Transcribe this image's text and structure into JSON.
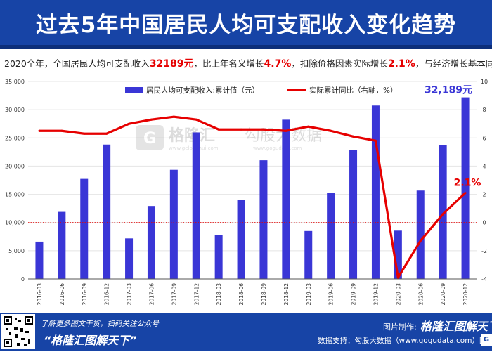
{
  "header": {
    "title": "过去5年中国居民人均可支配收入变化趋势"
  },
  "subtitle": {
    "p1": "2020全年，全国居民人均可支配收入",
    "v1": "32189元",
    "p2": "，比上年名义增长",
    "v2": "4.7%",
    "p3": "，扣除价格因素实际增长",
    "v3": "2.1%",
    "p4": "，与经济增长基本同步。"
  },
  "chart_data": {
    "type": "bar",
    "categories": [
      "2016-03",
      "2016-06",
      "2016-09",
      "2016-12",
      "2017-03",
      "2017-06",
      "2017-09",
      "2017-12",
      "2018-03",
      "2018-06",
      "2018-09",
      "2018-12",
      "2019-03",
      "2019-06",
      "2019-09",
      "2019-12",
      "2020-03",
      "2020-06",
      "2020-09",
      "2020-12"
    ],
    "series": [
      {
        "name": "居民人均可支配收入:累计值（元）",
        "type": "bar",
        "axis": "left",
        "color": "#3a36d6",
        "values": [
          6609,
          11886,
          17735,
          23821,
          7184,
          12932,
          19342,
          25974,
          7815,
          14063,
          21035,
          28228,
          8493,
          15294,
          22882,
          30733,
          8561,
          15666,
          23781,
          32189
        ]
      },
      {
        "name": "实际累计同比（右轴，%）",
        "type": "line",
        "axis": "right",
        "color": "#e60000",
        "values": [
          6.5,
          6.5,
          6.3,
          6.3,
          7.0,
          7.3,
          7.5,
          7.3,
          6.6,
          6.6,
          6.6,
          6.5,
          6.8,
          6.5,
          6.1,
          5.8,
          -3.9,
          -1.3,
          0.6,
          2.1
        ]
      }
    ],
    "y_left": {
      "ylim": [
        0,
        35000
      ],
      "ticks": [
        "0",
        "5,000",
        "10,000",
        "15,000",
        "20,000",
        "25,000",
        "30,000",
        "35,000"
      ]
    },
    "y_right": {
      "ylim": [
        -4,
        10
      ],
      "ticks": [
        "-4",
        "-2",
        "0",
        "2",
        "4",
        "6",
        "8",
        "10"
      ]
    },
    "annotations": {
      "last_bar_label": "32,189元",
      "last_line_label": "2.1%"
    },
    "legend_position": "top",
    "reference_line": {
      "axis": "right",
      "value": 0,
      "color": "#e60000",
      "style": "dotted"
    },
    "colors": {
      "bar": "#3a36d6",
      "line": "#e60000",
      "grid": "#e4e4e4",
      "zero_line": "#e60000"
    }
  },
  "watermark": {
    "brand": "格隆汇",
    "brand_url": "www.gelonghui.com",
    "partner": "勾股大数据",
    "partner_url": "www.gogudata.com"
  },
  "footer": {
    "line1": "了解更多图文干货，扫码关注公众号",
    "line2": "“格隆汇图解天下”",
    "maker_label": "图片制作:",
    "maker_brand": "格隆汇图解天下",
    "source": "数据支持：勾股大数据（www.gogudata.com）国家统计局",
    "badge": "G"
  }
}
